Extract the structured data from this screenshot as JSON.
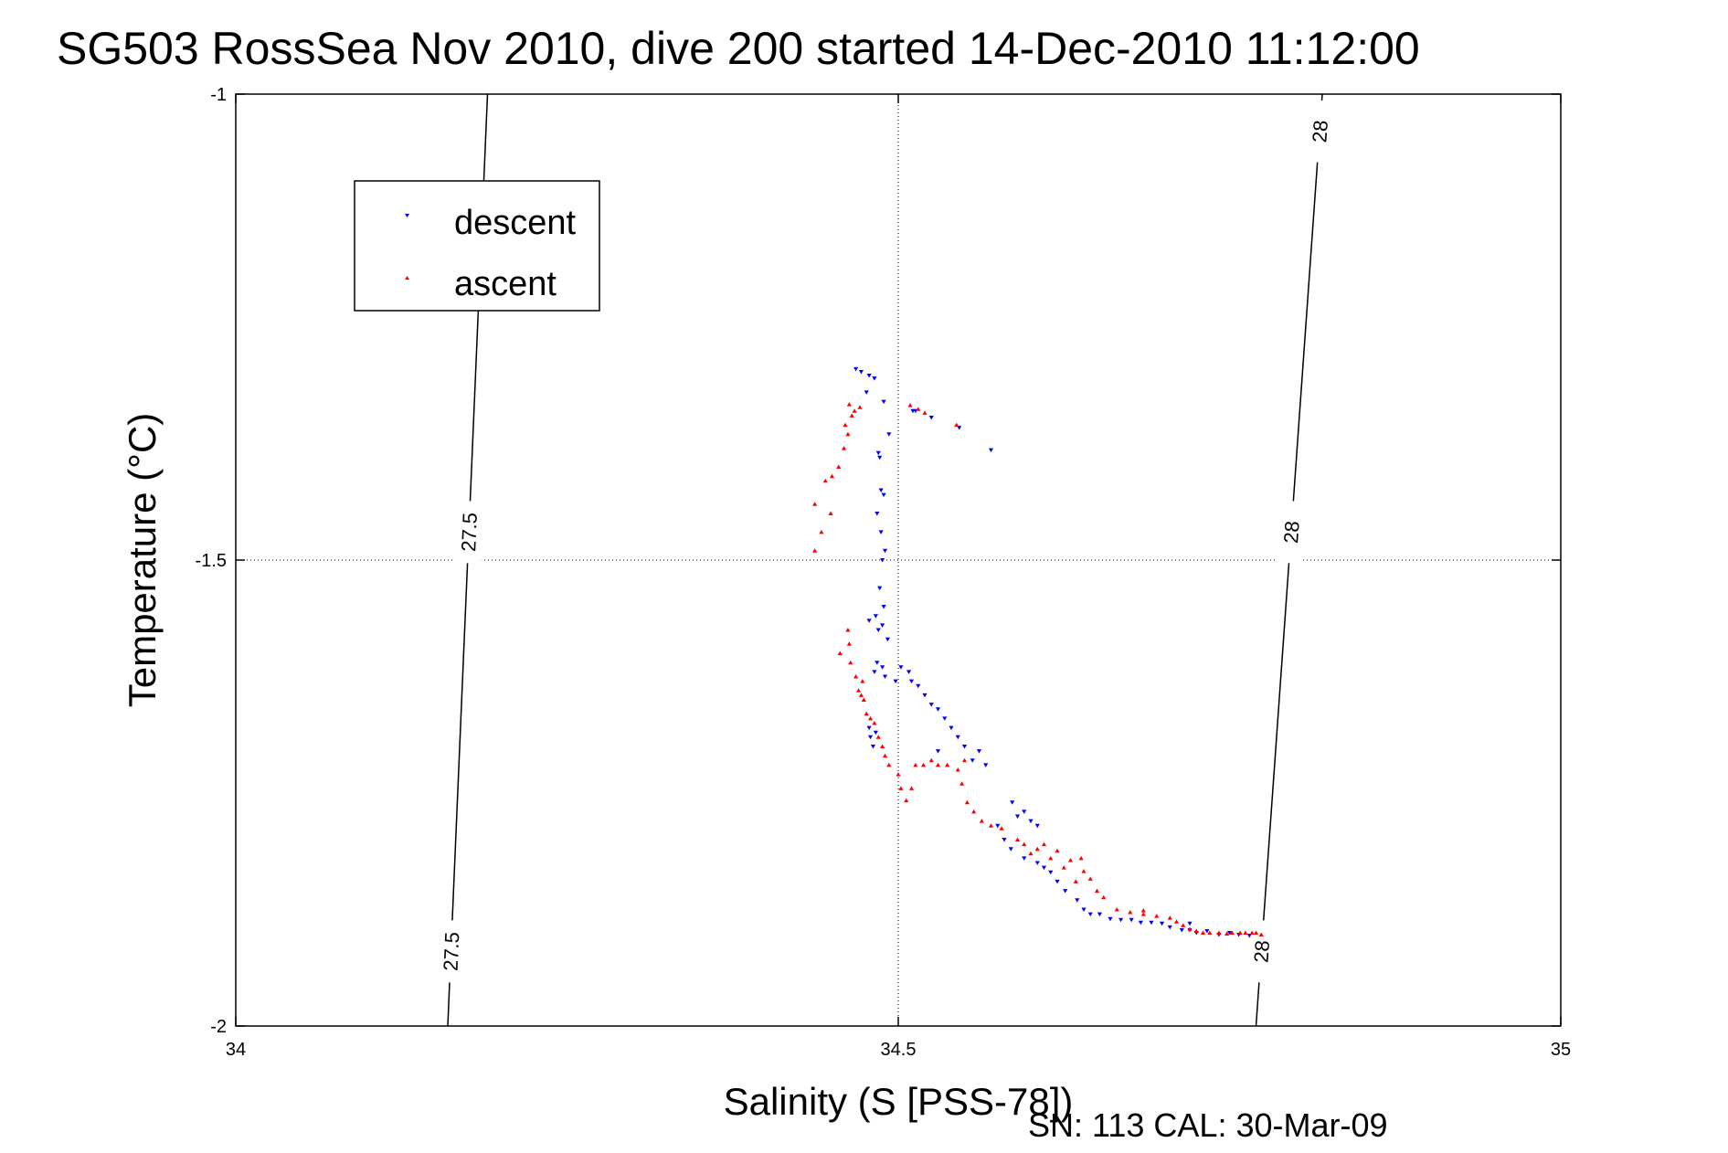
{
  "chart_data": {
    "type": "scatter",
    "title": "SG503 RossSea Nov 2010, dive 200 started 14-Dec-2010 11:12:00",
    "xlabel": "Salinity (S [PSS-78])",
    "ylabel": "Temperature (°C)",
    "xlim": [
      34,
      35
    ],
    "ylim": [
      -2,
      -1
    ],
    "xticks": [
      "34",
      "34.5",
      "35"
    ],
    "yticks": [
      "-1",
      "-1.5",
      "-2"
    ],
    "grid": "dotted",
    "legend_position": "top-left",
    "footer": "SN: 113  CAL: 30-Mar-09",
    "density_contours": [
      {
        "label": "27.5",
        "x_at_bottom": 34.16,
        "x_at_top": 34.19,
        "labels_at_y": [
          -1.47,
          -1.92
        ]
      },
      {
        "label": "28",
        "x_at_bottom": 34.77,
        "x_at_top": 34.82,
        "labels_at_y": [
          -1.04,
          -1.47,
          -1.92
        ]
      }
    ],
    "series": [
      {
        "name": "descent",
        "color": "#0000ff",
        "marker": "triangle-down",
        "points": [
          [
            34.468,
            -1.295
          ],
          [
            34.472,
            -1.298
          ],
          [
            34.478,
            -1.302
          ],
          [
            34.482,
            -1.305
          ],
          [
            34.489,
            -1.33
          ],
          [
            34.476,
            -1.32
          ],
          [
            34.493,
            -1.365
          ],
          [
            34.511,
            -1.34
          ],
          [
            34.513,
            -1.34
          ],
          [
            34.525,
            -1.347
          ],
          [
            34.546,
            -1.358
          ],
          [
            34.57,
            -1.382
          ],
          [
            34.485,
            -1.385
          ],
          [
            34.486,
            -1.39
          ],
          [
            34.487,
            -1.425
          ],
          [
            34.489,
            -1.43
          ],
          [
            34.484,
            -1.45
          ],
          [
            34.487,
            -1.47
          ],
          [
            34.49,
            -1.49
          ],
          [
            34.488,
            -1.5
          ],
          [
            34.486,
            -1.53
          ],
          [
            34.489,
            -1.55
          ],
          [
            34.483,
            -1.56
          ],
          [
            34.485,
            -1.575
          ],
          [
            34.488,
            -1.57
          ],
          [
            34.478,
            -1.565
          ],
          [
            34.492,
            -1.585
          ],
          [
            34.484,
            -1.61
          ],
          [
            34.488,
            -1.615
          ],
          [
            34.482,
            -1.62
          ],
          [
            34.49,
            -1.625
          ],
          [
            34.498,
            -1.63
          ],
          [
            34.502,
            -1.615
          ],
          [
            34.508,
            -1.62
          ],
          [
            34.51,
            -1.63
          ],
          [
            34.515,
            -1.635
          ],
          [
            34.52,
            -1.645
          ],
          [
            34.525,
            -1.655
          ],
          [
            34.53,
            -1.66
          ],
          [
            34.535,
            -1.67
          ],
          [
            34.54,
            -1.68
          ],
          [
            34.545,
            -1.69
          ],
          [
            34.55,
            -1.7
          ],
          [
            34.556,
            -1.715
          ],
          [
            34.561,
            -1.705
          ],
          [
            34.566,
            -1.72
          ],
          [
            34.53,
            -1.705
          ],
          [
            34.478,
            -1.68
          ],
          [
            34.479,
            -1.69
          ],
          [
            34.481,
            -1.7
          ],
          [
            34.483,
            -1.685
          ],
          [
            34.586,
            -1.76
          ],
          [
            34.59,
            -1.775
          ],
          [
            34.595,
            -1.77
          ],
          [
            34.6,
            -1.78
          ],
          [
            34.605,
            -1.785
          ],
          [
            34.575,
            -1.785
          ],
          [
            34.58,
            -1.8
          ],
          [
            34.585,
            -1.81
          ],
          [
            34.595,
            -1.82
          ],
          [
            34.605,
            -1.825
          ],
          [
            34.61,
            -1.83
          ],
          [
            34.615,
            -1.835
          ],
          [
            34.62,
            -1.845
          ],
          [
            34.626,
            -1.855
          ],
          [
            34.635,
            -1.865
          ],
          [
            34.64,
            -1.875
          ],
          [
            34.645,
            -1.88
          ],
          [
            34.652,
            -1.88
          ],
          [
            34.66,
            -1.885
          ],
          [
            34.668,
            -1.886
          ],
          [
            34.676,
            -1.886
          ],
          [
            34.683,
            -1.889
          ],
          [
            34.691,
            -1.889
          ],
          [
            34.699,
            -1.89
          ],
          [
            34.705,
            -1.894
          ],
          [
            34.714,
            -1.897
          ],
          [
            34.72,
            -1.897
          ],
          [
            34.725,
            -1.9
          ],
          [
            34.72,
            -1.89
          ],
          [
            34.733,
            -1.898
          ],
          [
            34.742,
            -1.902
          ],
          [
            34.75,
            -1.9
          ],
          [
            34.757,
            -1.902
          ],
          [
            34.765,
            -1.903
          ]
        ]
      },
      {
        "name": "ascent",
        "color": "#ff0000",
        "marker": "triangle-up",
        "points": [
          [
            34.463,
            -1.333
          ],
          [
            34.467,
            -1.34
          ],
          [
            34.471,
            -1.336
          ],
          [
            34.465,
            -1.345
          ],
          [
            34.46,
            -1.355
          ],
          [
            34.462,
            -1.365
          ],
          [
            34.459,
            -1.38
          ],
          [
            34.455,
            -1.4
          ],
          [
            34.45,
            -1.41
          ],
          [
            34.445,
            -1.415
          ],
          [
            34.437,
            -1.44
          ],
          [
            34.449,
            -1.45
          ],
          [
            34.442,
            -1.47
          ],
          [
            34.437,
            -1.49
          ],
          [
            34.509,
            -1.334
          ],
          [
            34.515,
            -1.338
          ],
          [
            34.52,
            -1.342
          ],
          [
            34.544,
            -1.355
          ],
          [
            34.462,
            -1.575
          ],
          [
            34.463,
            -1.59
          ],
          [
            34.456,
            -1.6
          ],
          [
            34.464,
            -1.61
          ],
          [
            34.468,
            -1.625
          ],
          [
            34.47,
            -1.64
          ],
          [
            34.472,
            -1.645
          ],
          [
            34.474,
            -1.65
          ],
          [
            34.473,
            -1.63
          ],
          [
            34.476,
            -1.665
          ],
          [
            34.479,
            -1.67
          ],
          [
            34.482,
            -1.675
          ],
          [
            34.485,
            -1.69
          ],
          [
            34.488,
            -1.7
          ],
          [
            34.49,
            -1.71
          ],
          [
            34.493,
            -1.72
          ],
          [
            34.5,
            -1.73
          ],
          [
            34.502,
            -1.745
          ],
          [
            34.506,
            -1.758
          ],
          [
            34.51,
            -1.745
          ],
          [
            34.513,
            -1.72
          ],
          [
            34.519,
            -1.72
          ],
          [
            34.525,
            -1.715
          ],
          [
            34.53,
            -1.72
          ],
          [
            34.537,
            -1.72
          ],
          [
            34.545,
            -1.725
          ],
          [
            34.55,
            -1.715
          ],
          [
            34.548,
            -1.74
          ],
          [
            34.552,
            -1.76
          ],
          [
            34.557,
            -1.77
          ],
          [
            34.563,
            -1.78
          ],
          [
            34.57,
            -1.785
          ],
          [
            34.578,
            -1.788
          ],
          [
            34.59,
            -1.8
          ],
          [
            34.595,
            -1.805
          ],
          [
            34.6,
            -1.815
          ],
          [
            34.605,
            -1.81
          ],
          [
            34.61,
            -1.805
          ],
          [
            34.615,
            -1.82
          ],
          [
            34.62,
            -1.812
          ],
          [
            34.625,
            -1.83
          ],
          [
            34.63,
            -1.822
          ],
          [
            34.634,
            -1.845
          ],
          [
            34.638,
            -1.82
          ],
          [
            34.64,
            -1.834
          ],
          [
            34.645,
            -1.842
          ],
          [
            34.65,
            -1.855
          ],
          [
            34.655,
            -1.862
          ],
          [
            34.665,
            -1.875
          ],
          [
            34.675,
            -1.878
          ],
          [
            34.685,
            -1.88
          ],
          [
            34.695,
            -1.882
          ],
          [
            34.705,
            -1.884
          ],
          [
            34.71,
            -1.888
          ],
          [
            34.715,
            -1.892
          ],
          [
            34.72,
            -1.896
          ],
          [
            34.725,
            -1.898
          ],
          [
            34.73,
            -1.9
          ],
          [
            34.735,
            -1.9
          ],
          [
            34.742,
            -1.9
          ],
          [
            34.748,
            -1.901
          ],
          [
            34.752,
            -1.9
          ],
          [
            34.758,
            -1.9
          ],
          [
            34.762,
            -1.9
          ],
          [
            34.767,
            -1.9
          ],
          [
            34.77,
            -1.9
          ],
          [
            34.774,
            -1.902
          ],
          [
            34.685,
            -1.876
          ]
        ]
      }
    ]
  }
}
